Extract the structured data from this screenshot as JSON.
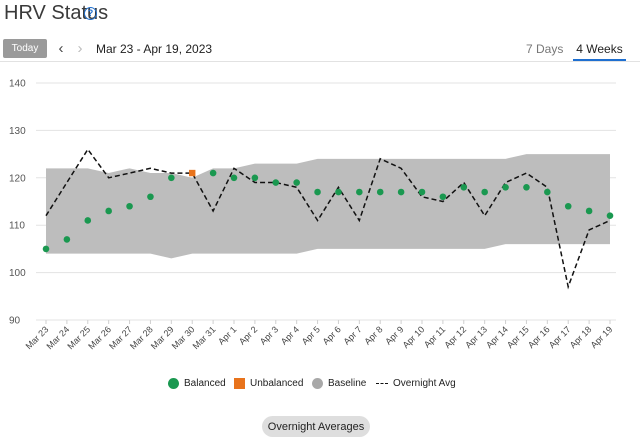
{
  "header": {
    "title": "HRV Status",
    "help_icon": "question-circle-icon"
  },
  "toolbar": {
    "today_label": "Today",
    "prev_icon": "chevron-left-icon",
    "next_icon": "chevron-right-icon",
    "date_range": "Mar 23 - Apr 19, 2023"
  },
  "tabs": [
    {
      "label": "7 Days",
      "active": false
    },
    {
      "label": "4 Weeks",
      "active": true
    }
  ],
  "colors": {
    "balanced": "#1a9850",
    "unbalanced": "#e8731c",
    "baseline": "#bdbdbd",
    "overnight_avg": "#111111",
    "accent": "#1e6fd0"
  },
  "legend": {
    "balanced": "Balanced",
    "unbalanced": "Unbalanced",
    "baseline": "Baseline",
    "overnight_avg": "Overnight Avg"
  },
  "footer": {
    "overnight_button": "Overnight Averages"
  },
  "chart_data": {
    "type": "line",
    "ylim": [
      90,
      140
    ],
    "yticks": [
      90,
      100,
      110,
      120,
      130,
      140
    ],
    "grid": true,
    "legend_position": "bottom",
    "x": [
      "Mar 23",
      "Mar 24",
      "Mar 25",
      "Mar 26",
      "Mar 27",
      "Mar 28",
      "Mar 29",
      "Mar 30",
      "Mar 31",
      "Apr 1",
      "Apr 2",
      "Apr 3",
      "Apr 4",
      "Apr 5",
      "Apr 6",
      "Apr 7",
      "Apr 8",
      "Apr 9",
      "Apr 10",
      "Apr 11",
      "Apr 12",
      "Apr 13",
      "Apr 14",
      "Apr 15",
      "Apr 16",
      "Apr 17",
      "Apr 18",
      "Apr 19"
    ],
    "baseline_low": [
      104,
      104,
      104,
      104,
      104,
      104,
      103,
      104,
      104,
      104,
      104,
      104,
      104,
      105,
      105,
      105,
      105,
      105,
      105,
      105,
      105,
      105,
      106,
      106,
      106,
      106,
      106,
      106
    ],
    "baseline_high": [
      122,
      122,
      122,
      121,
      122,
      121,
      121,
      120,
      122,
      122,
      123,
      123,
      123,
      124,
      124,
      124,
      124,
      124,
      124,
      124,
      124,
      124,
      124,
      125,
      125,
      125,
      125,
      125
    ],
    "series": [
      {
        "name": "Balanced",
        "points": [
          {
            "x": "Mar 23",
            "y": 105
          },
          {
            "x": "Mar 24",
            "y": 107
          },
          {
            "x": "Mar 25",
            "y": 111
          },
          {
            "x": "Mar 26",
            "y": 113
          },
          {
            "x": "Mar 27",
            "y": 114
          },
          {
            "x": "Mar 28",
            "y": 116
          },
          {
            "x": "Mar 29",
            "y": 120
          },
          {
            "x": "Mar 31",
            "y": 121
          },
          {
            "x": "Apr 1",
            "y": 120
          },
          {
            "x": "Apr 2",
            "y": 120
          },
          {
            "x": "Apr 3",
            "y": 119
          },
          {
            "x": "Apr 4",
            "y": 119
          },
          {
            "x": "Apr 5",
            "y": 117
          },
          {
            "x": "Apr 6",
            "y": 117
          },
          {
            "x": "Apr 7",
            "y": 117
          },
          {
            "x": "Apr 8",
            "y": 117
          },
          {
            "x": "Apr 9",
            "y": 117
          },
          {
            "x": "Apr 10",
            "y": 117
          },
          {
            "x": "Apr 11",
            "y": 116
          },
          {
            "x": "Apr 12",
            "y": 118
          },
          {
            "x": "Apr 13",
            "y": 117
          },
          {
            "x": "Apr 14",
            "y": 118
          },
          {
            "x": "Apr 15",
            "y": 118
          },
          {
            "x": "Apr 16",
            "y": 117
          },
          {
            "x": "Apr 17",
            "y": 114
          },
          {
            "x": "Apr 18",
            "y": 113
          },
          {
            "x": "Apr 19",
            "y": 112
          }
        ]
      },
      {
        "name": "Unbalanced",
        "points": [
          {
            "x": "Mar 30",
            "y": 121
          }
        ]
      },
      {
        "name": "Overnight Avg",
        "values": [
          112,
          119,
          126,
          120,
          121,
          122,
          121,
          121,
          113,
          122,
          119,
          119,
          118,
          111,
          118,
          111,
          124,
          122,
          116,
          115,
          119,
          112,
          119,
          121,
          118,
          97,
          109,
          111
        ]
      }
    ]
  }
}
